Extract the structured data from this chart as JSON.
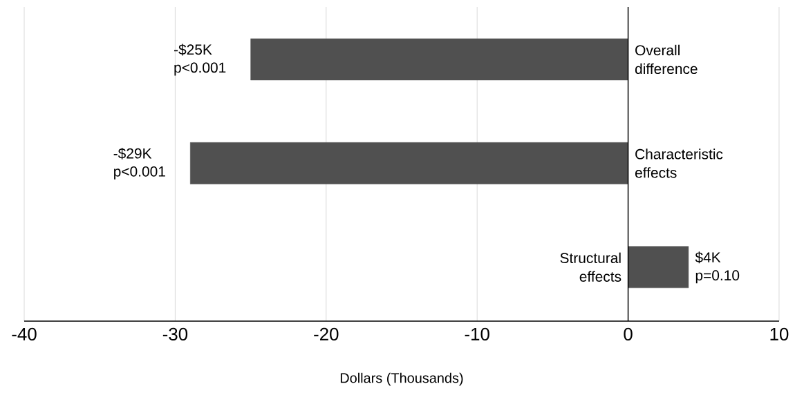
{
  "chart_data": {
    "type": "bar",
    "orientation": "horizontal",
    "categories": [
      "Overall difference",
      "Characteristic effects",
      "Structural effects"
    ],
    "values": [
      -25,
      -29,
      4
    ],
    "value_labels": [
      "-$25K",
      "-$29K",
      "$4K"
    ],
    "annotations": [
      "p<0.001",
      "p<0.001",
      "p=0.10"
    ],
    "color": "#505050",
    "xlabel": "Dollars (Thousands)",
    "xlim": [
      -40,
      10
    ],
    "xticks": [
      -40,
      -30,
      -20,
      -10,
      0,
      10
    ],
    "grid": "x"
  }
}
